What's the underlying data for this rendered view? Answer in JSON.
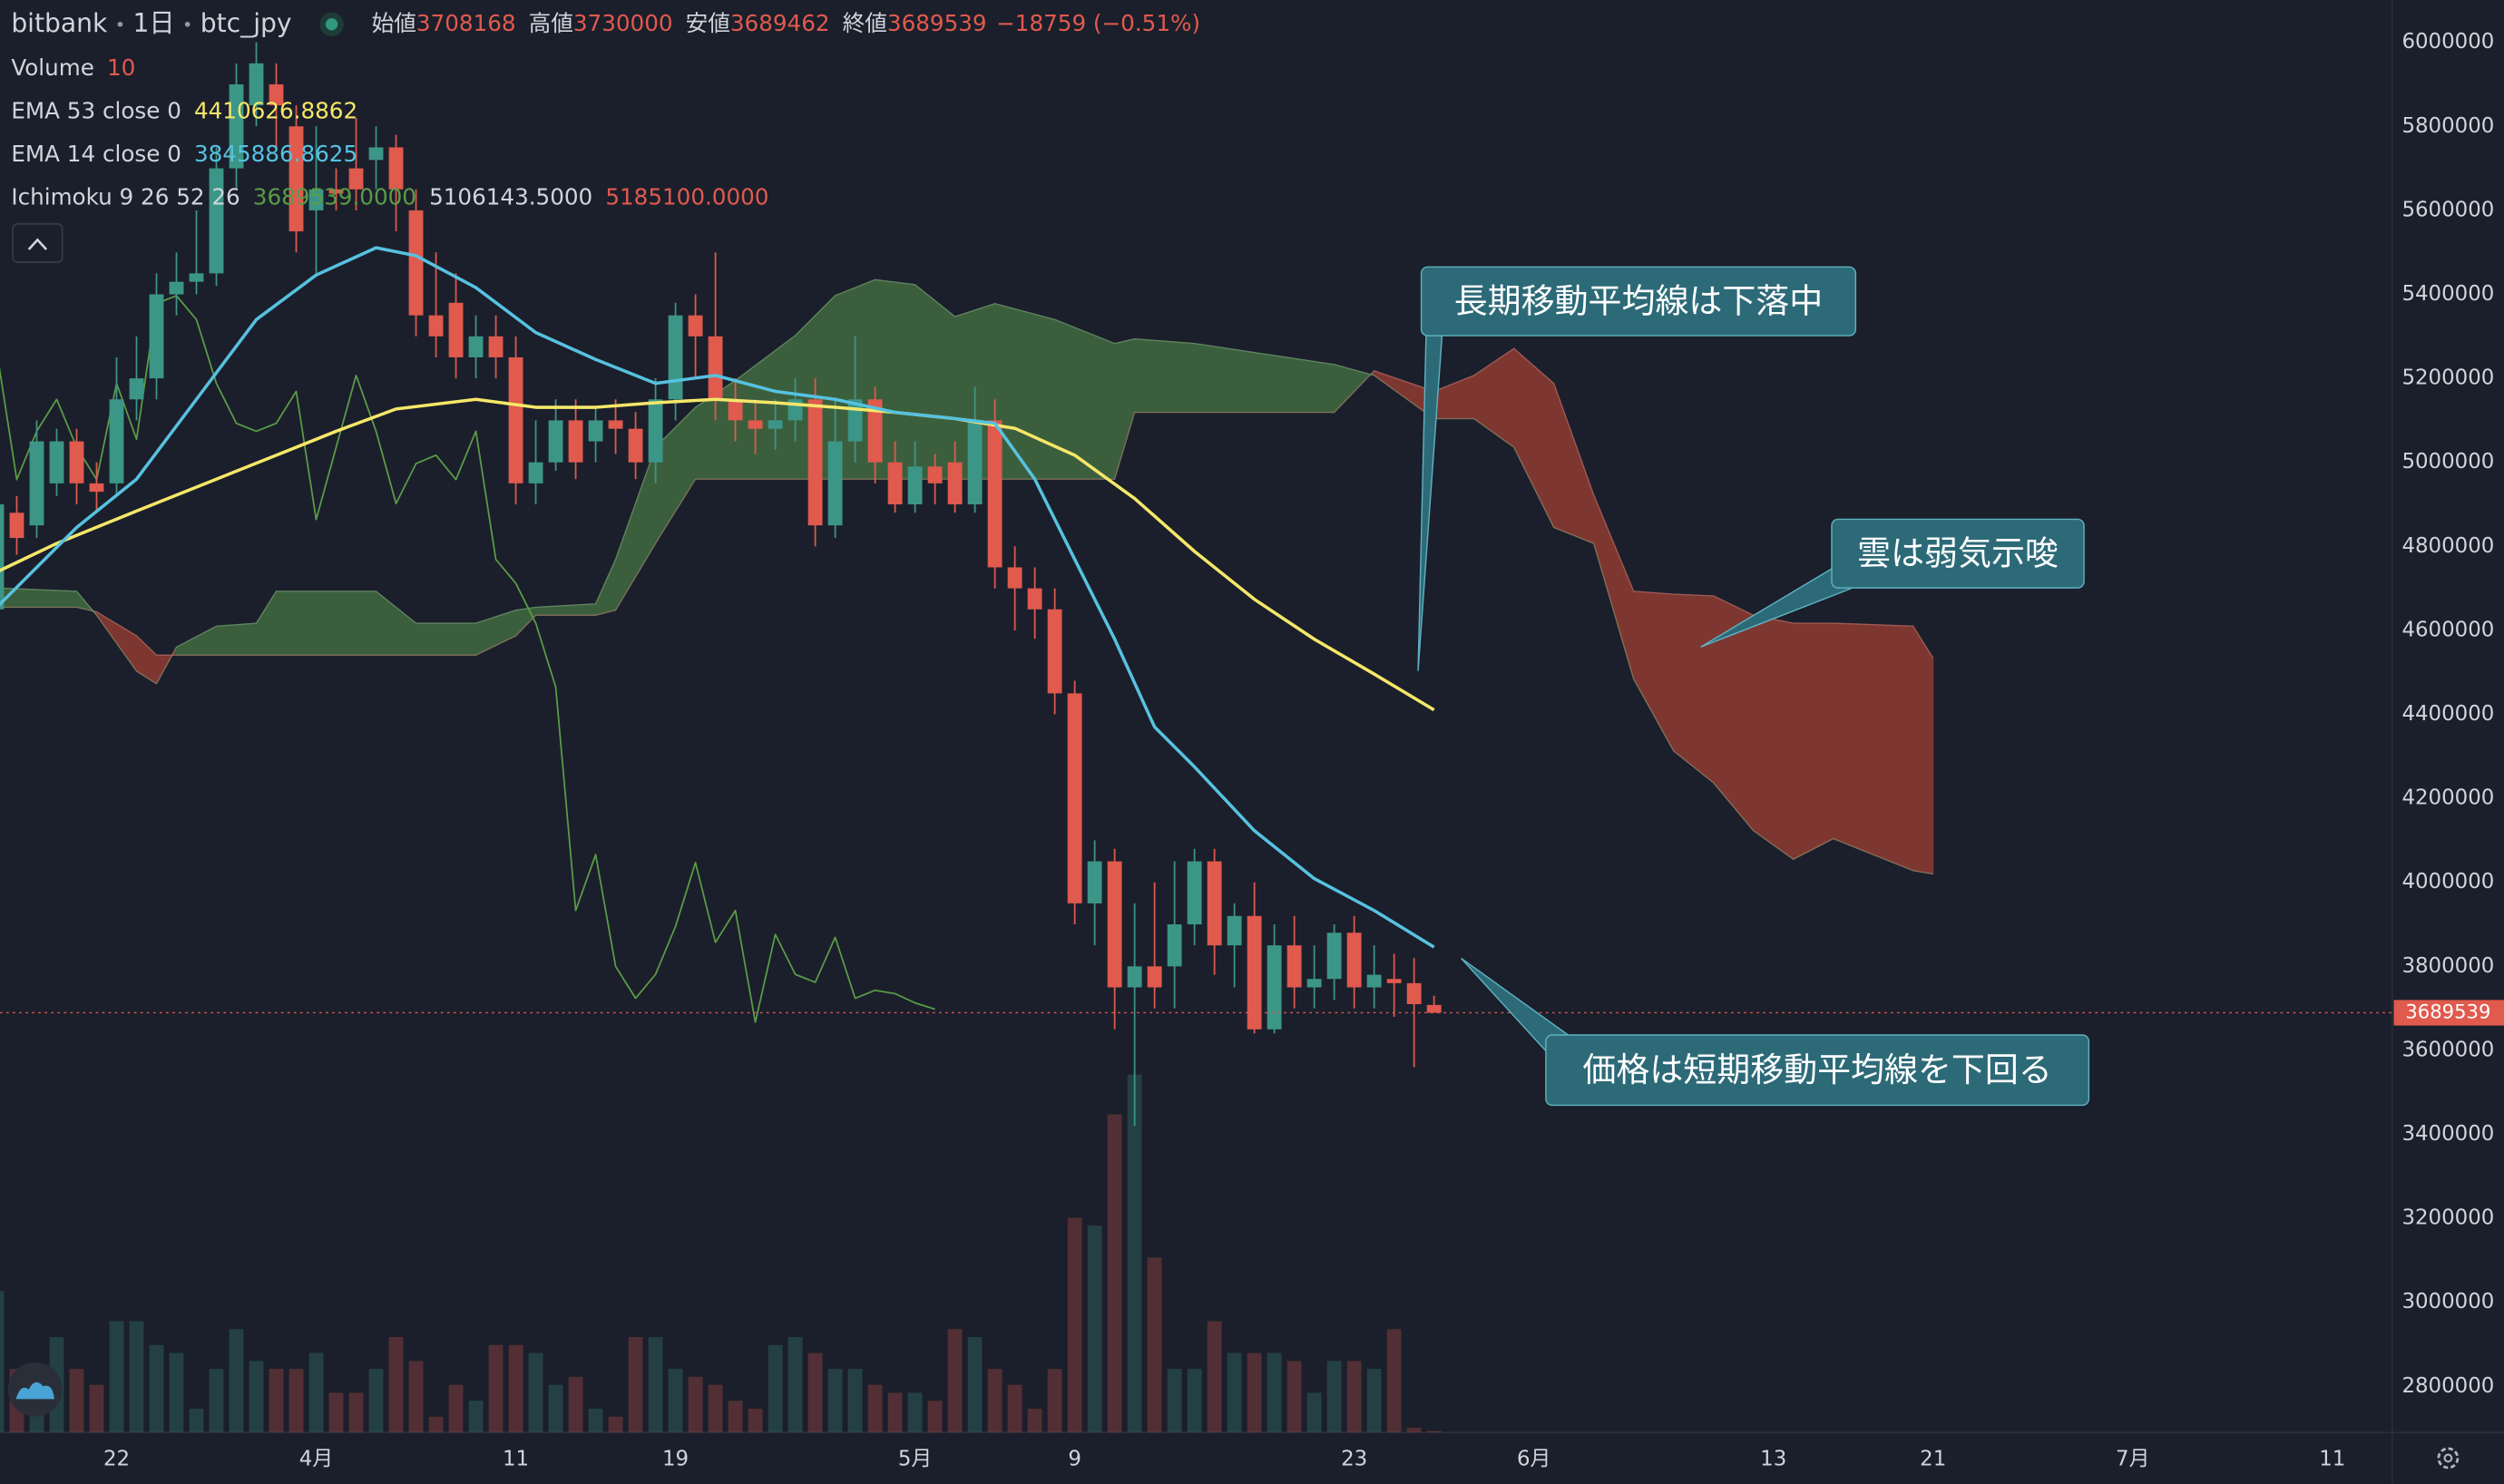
{
  "header": {
    "exchange": "bitbank",
    "interval": "1日",
    "symbol": "btc_jpy",
    "quote": [
      {
        "label": "始値",
        "value": "3708168"
      },
      {
        "label": "高値",
        "value": "3730000"
      },
      {
        "label": "安値",
        "value": "3689462"
      },
      {
        "label": "終値",
        "value": "3689539"
      }
    ],
    "change": "−18759 (−0.51%)"
  },
  "legend": [
    {
      "name": "Volume",
      "values": [
        "10"
      ],
      "colors": [
        "#e05a4e"
      ]
    },
    {
      "name": "EMA 53 close 0",
      "values": [
        "4410626.8862"
      ],
      "colors": [
        "#f5e769"
      ]
    },
    {
      "name": "EMA 14 close 0",
      "values": [
        "3845886.8625"
      ],
      "colors": [
        "#56c2e0"
      ]
    },
    {
      "name": "Ichimoku 9 26 52 26",
      "values": [
        "3689539.0000",
        "5106143.5000",
        "5185100.0000"
      ],
      "colors": [
        "#5a9c48",
        "#d1d4dc",
        "#e05a4e"
      ]
    }
  ],
  "annotations": [
    "長期移動平均線は下落中",
    "雲は弱気示唆",
    "価格は短期移動平均線を下回る"
  ],
  "chart_data": {
    "type": "candlestick",
    "xlim": [
      -5.84,
      114
    ],
    "xticks": [
      {
        "value": 0,
        "label": "22"
      },
      {
        "value": 10,
        "label": "4月"
      },
      {
        "value": 20,
        "label": "11"
      },
      {
        "value": 28,
        "label": "19"
      },
      {
        "value": 40,
        "label": "5月"
      },
      {
        "value": 48,
        "label": "9"
      },
      {
        "value": 62,
        "label": "23"
      },
      {
        "value": 71,
        "label": "6月"
      },
      {
        "value": 83,
        "label": "13"
      },
      {
        "value": 91,
        "label": "21"
      },
      {
        "value": 101,
        "label": "7月"
      },
      {
        "value": 111,
        "label": "11"
      }
    ],
    "ylim": [
      2690000,
      6100000
    ],
    "yticks": [
      2800000,
      3000000,
      3200000,
      3400000,
      3600000,
      3800000,
      4000000,
      4200000,
      4400000,
      4600000,
      4800000,
      5000000,
      5200000,
      5400000,
      5600000,
      5800000,
      6000000
    ],
    "grid": false,
    "up_color": "#3c9687",
    "down_color": "#e05a4e",
    "x": [
      -6,
      -5,
      -4,
      -3,
      -2,
      -1,
      0,
      1,
      2,
      3,
      4,
      5,
      6,
      7,
      8,
      9,
      10,
      11,
      12,
      13,
      14,
      15,
      16,
      17,
      18,
      19,
      20,
      21,
      22,
      23,
      24,
      25,
      26,
      27,
      28,
      29,
      30,
      31,
      32,
      33,
      34,
      35,
      36,
      37,
      38,
      39,
      40,
      41,
      42,
      43,
      44,
      45,
      46,
      47,
      48,
      49,
      50,
      51,
      52,
      53,
      54,
      55,
      56,
      57,
      58,
      59,
      60,
      61,
      62,
      63,
      64,
      65,
      66
    ],
    "open": [
      4650000,
      4880000,
      4850000,
      4950000,
      5050000,
      4950000,
      4950000,
      5150000,
      5200000,
      5400000,
      5430000,
      5450000,
      5700000,
      5850000,
      5900000,
      5800000,
      5600000,
      5650000,
      5700000,
      5720000,
      5750000,
      5600000,
      5350000,
      5380000,
      5250000,
      5300000,
      5250000,
      4950000,
      5000000,
      5100000,
      5050000,
      5100000,
      5080000,
      5000000,
      5150000,
      5350000,
      5300000,
      5150000,
      5100000,
      5080000,
      5100000,
      5150000,
      4850000,
      5050000,
      5150000,
      5000000,
      4900000,
      4990000,
      5000000,
      4900000,
      5100000,
      4750000,
      4700000,
      4650000,
      4450000,
      3950000,
      4050000,
      3750000,
      3800000,
      3800000,
      3900000,
      4050000,
      3850000,
      3920000,
      3650000,
      3850000,
      3750000,
      3770000,
      3880000,
      3750000,
      3770000,
      3760000,
      3708168
    ],
    "high": [
      4950000,
      4920000,
      5100000,
      5080000,
      5080000,
      5000000,
      5250000,
      5300000,
      5450000,
      5500000,
      5600000,
      5750000,
      5950000,
      6000000,
      5950000,
      5850000,
      5800000,
      5700000,
      5820000,
      5800000,
      5780000,
      5650000,
      5500000,
      5450000,
      5350000,
      5350000,
      5300000,
      5100000,
      5150000,
      5150000,
      5130000,
      5150000,
      5120000,
      5200000,
      5380000,
      5400000,
      5500000,
      5200000,
      5150000,
      5150000,
      5200000,
      5200000,
      5150000,
      5300000,
      5180000,
      5050000,
      5050000,
      5020000,
      5050000,
      5180000,
      5150000,
      4800000,
      4750000,
      4700000,
      4480000,
      4100000,
      4080000,
      3950000,
      4000000,
      4050000,
      4080000,
      4080000,
      3950000,
      4000000,
      3900000,
      3920000,
      3850000,
      3900000,
      3920000,
      3850000,
      3830000,
      3820000,
      3730000
    ],
    "low": [
      4600000,
      4780000,
      4820000,
      4920000,
      4900000,
      4880000,
      4920000,
      5100000,
      5150000,
      5350000,
      5400000,
      5420000,
      5650000,
      5800000,
      5750000,
      5500000,
      5450000,
      5600000,
      5600000,
      5650000,
      5550000,
      5300000,
      5250000,
      5200000,
      5200000,
      5200000,
      4900000,
      4900000,
      4980000,
      4960000,
      5000000,
      5020000,
      4960000,
      4950000,
      5100000,
      5200000,
      5100000,
      5050000,
      5020000,
      5030000,
      5050000,
      4800000,
      4820000,
      5000000,
      4950000,
      4880000,
      4880000,
      4900000,
      4880000,
      4880000,
      4700000,
      4600000,
      4580000,
      4400000,
      3900000,
      3850000,
      3650000,
      3420000,
      3700000,
      3700000,
      3850000,
      3780000,
      3750000,
      3640000,
      3640000,
      3700000,
      3700000,
      3720000,
      3700000,
      3700000,
      3680000,
      3560000,
      3689462
    ],
    "close": [
      4900000,
      4820000,
      5050000,
      5050000,
      4950000,
      4930000,
      5150000,
      5200000,
      5400000,
      5430000,
      5450000,
      5700000,
      5900000,
      5950000,
      5850000,
      5550000,
      5650000,
      5640000,
      5650000,
      5750000,
      5650000,
      5350000,
      5300000,
      5250000,
      5300000,
      5250000,
      4950000,
      5000000,
      5100000,
      5000000,
      5100000,
      5080000,
      5000000,
      5150000,
      5350000,
      5300000,
      5150000,
      5100000,
      5080000,
      5100000,
      5150000,
      4850000,
      5050000,
      5150000,
      5000000,
      4900000,
      4990000,
      4950000,
      4900000,
      5100000,
      4750000,
      4700000,
      4650000,
      4450000,
      3950000,
      4050000,
      3750000,
      3800000,
      3750000,
      3900000,
      4050000,
      3850000,
      3920000,
      3650000,
      3850000,
      3750000,
      3770000,
      3880000,
      3750000,
      3780000,
      3760000,
      3710000,
      3689539
    ],
    "volume": [
      890,
      400,
      400,
      600,
      400,
      300,
      700,
      700,
      550,
      500,
      150,
      400,
      650,
      450,
      400,
      400,
      500,
      250,
      250,
      400,
      600,
      450,
      100,
      300,
      200,
      550,
      550,
      500,
      300,
      350,
      150,
      100,
      600,
      600,
      400,
      350,
      300,
      200,
      150,
      550,
      600,
      500,
      400,
      400,
      300,
      250,
      250,
      200,
      650,
      600,
      400,
      300,
      150,
      400,
      1350,
      1300,
      2000,
      2250,
      1100,
      400,
      400,
      700,
      500,
      500,
      500,
      450,
      250,
      450,
      450,
      400,
      650,
      30,
      10
    ],
    "vlim": [
      0,
      9000
    ],
    "series": [
      {
        "color": "#5a9c48",
        "width": 1,
        "x": [
          -6,
          -5,
          -4,
          -3,
          -2,
          -1,
          0,
          1,
          2,
          3,
          4,
          5,
          6,
          7,
          8,
          9,
          10,
          11,
          12,
          13,
          14,
          15,
          16,
          17,
          18,
          19,
          20,
          21,
          22,
          23,
          24,
          25,
          26,
          27,
          28,
          29,
          30,
          31,
          32,
          33,
          34,
          35,
          36,
          37,
          38,
          39,
          40,
          41
        ],
        "values": [
          5264000,
          4959000,
          5074000,
          5150000,
          5036000,
          4959000,
          5188000,
          5055000,
          5378000,
          5397000,
          5340000,
          5188000,
          5093000,
          5074000,
          5093000,
          5169000,
          4864000,
          5036000,
          5207000,
          5074000,
          4902000,
          4997000,
          5017000,
          4959000,
          5074000,
          4769000,
          4712000,
          4617000,
          4465000,
          3933000,
          4066000,
          3800000,
          3724000,
          3781000,
          3895000,
          4047000,
          3857000,
          3933000,
          3667000,
          3876000,
          3781000,
          3762000,
          3869000,
          3724000,
          3743000,
          3735000,
          3713000,
          3698000
        ]
      },
      {
        "color": "#f5e769",
        "width": 2,
        "x": [
          -6,
          -3,
          1,
          5,
          8,
          11,
          14,
          18,
          21,
          24,
          27,
          30,
          33,
          36,
          39,
          42,
          45,
          48,
          51,
          54,
          57,
          60,
          63,
          66
        ],
        "values": [
          4739000,
          4807000,
          4884000,
          4960000,
          5017000,
          5074000,
          5127000,
          5150000,
          5131000,
          5131000,
          5142000,
          5150000,
          5142000,
          5131000,
          5119000,
          5104000,
          5081000,
          5017000,
          4914000,
          4788000,
          4674000,
          4579000,
          4496000,
          4410626.8862
        ]
      },
      {
        "color": "#56c2e0",
        "width": 2,
        "x": [
          -6,
          -2,
          1,
          4,
          7,
          10,
          13,
          15,
          18,
          21,
          24,
          27,
          30,
          33,
          36,
          39,
          42,
          44,
          46,
          48,
          50,
          52,
          54,
          57,
          60,
          63,
          66
        ],
        "values": [
          4655000,
          4845000,
          4960000,
          5150000,
          5340000,
          5446000,
          5511000,
          5492000,
          5416000,
          5309000,
          5245000,
          5188000,
          5207000,
          5169000,
          5150000,
          5119000,
          5104000,
          5093000,
          4960000,
          4769000,
          4579000,
          4370000,
          4275000,
          4123000,
          4009000,
          3933000,
          3845886.8625
        ]
      }
    ],
    "cloud": {
      "bull_color": "#3b5f3d",
      "bear_color": "#7e3630",
      "x": [
        -6,
        -2,
        -1,
        1,
        2,
        3,
        5,
        7,
        8,
        13,
        15,
        18,
        20,
        21,
        24,
        25,
        27,
        29,
        31,
        34,
        36,
        38,
        40,
        42,
        44,
        47,
        50,
        51,
        54,
        61,
        63,
        66,
        68,
        70,
        72,
        74,
        76,
        78,
        80,
        82,
        84,
        86,
        90,
        91
      ],
      "span_a": [
        4701000,
        4693000,
        4636000,
        4503000,
        4473000,
        4560000,
        4610000,
        4617000,
        4693000,
        4693000,
        4617000,
        4617000,
        4648000,
        4655000,
        4663000,
        4769000,
        5036000,
        5131000,
        5195000,
        5302000,
        5397000,
        5435000,
        5423000,
        5347000,
        5378000,
        5340000,
        5283000,
        5294000,
        5283000,
        5233000,
        5207000,
        5104000,
        5104000,
        5036000,
        4845000,
        4807000,
        4484000,
        4313000,
        4237000,
        4123000,
        4055000,
        4104000,
        4028000,
        4020000
      ],
      "span_b": [
        4655000,
        4655000,
        4644000,
        4587000,
        4541000,
        4541000,
        4541000,
        4541000,
        4541000,
        4541000,
        4541000,
        4541000,
        4587000,
        4636000,
        4636000,
        4648000,
        4807000,
        4960000,
        4960000,
        4960000,
        4960000,
        4960000,
        4960000,
        4960000,
        4960000,
        4960000,
        4960000,
        5119000,
        5119000,
        5119000,
        5218000,
        5169000,
        5207000,
        5271000,
        5188000,
        4922000,
        4693000,
        4686000,
        4682000,
        4636000,
        4617000,
        4617000,
        4610000,
        4534000
      ]
    },
    "last_price": 3689539
  }
}
